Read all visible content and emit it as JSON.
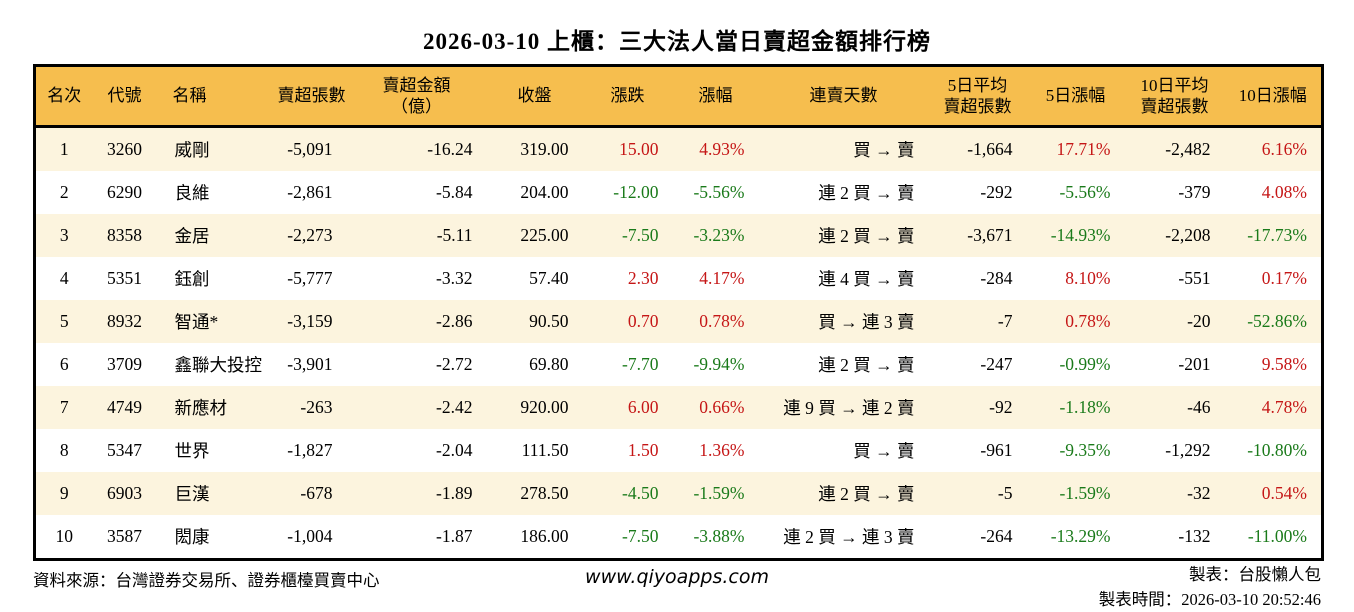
{
  "title": "2026-03-10 上櫃：三大法人當日賣超金額排行榜",
  "colors": {
    "rise": "#c51616",
    "fall": "#1a7a1a",
    "header_bg": "#f6be4e",
    "row_alt_bg": "#fcf4de",
    "border": "#000000"
  },
  "table": {
    "columns": [
      {
        "key": "rank",
        "label": "名次",
        "align_header": "center",
        "align": "center"
      },
      {
        "key": "code",
        "label": "代號",
        "align_header": "center",
        "align": "center"
      },
      {
        "key": "name",
        "label": "名稱",
        "align_header": "left",
        "align": "left"
      },
      {
        "key": "sell_shares",
        "label": "賣超張數",
        "align_header": "center",
        "align": "right"
      },
      {
        "key": "sell_amount",
        "label": "賣超金額\n（億）",
        "align_header": "center",
        "align": "right"
      },
      {
        "key": "close",
        "label": "收盤",
        "align_header": "center",
        "align": "right"
      },
      {
        "key": "change",
        "label": "漲跌",
        "align_header": "center",
        "align": "right"
      },
      {
        "key": "change_pct",
        "label": "漲幅",
        "align_header": "center",
        "align": "right"
      },
      {
        "key": "streak",
        "label": "連賣天數",
        "align_header": "center",
        "align": "right"
      },
      {
        "key": "avg5",
        "label": "5日平均\n賣超張數",
        "align_header": "center",
        "align": "right"
      },
      {
        "key": "pct5",
        "label": "5日漲幅",
        "align_header": "center",
        "align": "right"
      },
      {
        "key": "avg10",
        "label": "10日平均\n賣超張數",
        "align_header": "center",
        "align": "right"
      },
      {
        "key": "pct10",
        "label": "10日漲幅",
        "align_header": "center",
        "align": "right"
      }
    ],
    "rows": [
      {
        "rank": "1",
        "code": "3260",
        "name": "威剛",
        "sell_shares": "-5,091",
        "sell_amount": "-16.24",
        "close": "319.00",
        "change": {
          "v": "15.00",
          "dir": "up"
        },
        "change_pct": {
          "v": "4.93%",
          "dir": "up"
        },
        "streak": "買 → 賣",
        "avg5": "-1,664",
        "pct5": {
          "v": "17.71%",
          "dir": "up"
        },
        "avg10": "-2,482",
        "pct10": {
          "v": "6.16%",
          "dir": "up"
        }
      },
      {
        "rank": "2",
        "code": "6290",
        "name": "良維",
        "sell_shares": "-2,861",
        "sell_amount": "-5.84",
        "close": "204.00",
        "change": {
          "v": "-12.00",
          "dir": "down"
        },
        "change_pct": {
          "v": "-5.56%",
          "dir": "down"
        },
        "streak": "連 2 買 → 賣",
        "avg5": "-292",
        "pct5": {
          "v": "-5.56%",
          "dir": "down"
        },
        "avg10": "-379",
        "pct10": {
          "v": "4.08%",
          "dir": "up"
        }
      },
      {
        "rank": "3",
        "code": "8358",
        "name": "金居",
        "sell_shares": "-2,273",
        "sell_amount": "-5.11",
        "close": "225.00",
        "change": {
          "v": "-7.50",
          "dir": "down"
        },
        "change_pct": {
          "v": "-3.23%",
          "dir": "down"
        },
        "streak": "連 2 買 → 賣",
        "avg5": "-3,671",
        "pct5": {
          "v": "-14.93%",
          "dir": "down"
        },
        "avg10": "-2,208",
        "pct10": {
          "v": "-17.73%",
          "dir": "down"
        }
      },
      {
        "rank": "4",
        "code": "5351",
        "name": "鈺創",
        "sell_shares": "-5,777",
        "sell_amount": "-3.32",
        "close": "57.40",
        "change": {
          "v": "2.30",
          "dir": "up"
        },
        "change_pct": {
          "v": "4.17%",
          "dir": "up"
        },
        "streak": "連 4 買 → 賣",
        "avg5": "-284",
        "pct5": {
          "v": "8.10%",
          "dir": "up"
        },
        "avg10": "-551",
        "pct10": {
          "v": "0.17%",
          "dir": "up"
        }
      },
      {
        "rank": "5",
        "code": "8932",
        "name": "智通*",
        "sell_shares": "-3,159",
        "sell_amount": "-2.86",
        "close": "90.50",
        "change": {
          "v": "0.70",
          "dir": "up"
        },
        "change_pct": {
          "v": "0.78%",
          "dir": "up"
        },
        "streak": "買 → 連 3 賣",
        "avg5": "-7",
        "pct5": {
          "v": "0.78%",
          "dir": "up"
        },
        "avg10": "-20",
        "pct10": {
          "v": "-52.86%",
          "dir": "down"
        }
      },
      {
        "rank": "6",
        "code": "3709",
        "name": "鑫聯大投控",
        "sell_shares": "-3,901",
        "sell_amount": "-2.72",
        "close": "69.80",
        "change": {
          "v": "-7.70",
          "dir": "down"
        },
        "change_pct": {
          "v": "-9.94%",
          "dir": "down"
        },
        "streak": "連 2 買 → 賣",
        "avg5": "-247",
        "pct5": {
          "v": "-0.99%",
          "dir": "down"
        },
        "avg10": "-201",
        "pct10": {
          "v": "9.58%",
          "dir": "up"
        }
      },
      {
        "rank": "7",
        "code": "4749",
        "name": "新應材",
        "sell_shares": "-263",
        "sell_amount": "-2.42",
        "close": "920.00",
        "change": {
          "v": "6.00",
          "dir": "up"
        },
        "change_pct": {
          "v": "0.66%",
          "dir": "up"
        },
        "streak": "連 9 買 → 連 2 賣",
        "avg5": "-92",
        "pct5": {
          "v": "-1.18%",
          "dir": "down"
        },
        "avg10": "-46",
        "pct10": {
          "v": "4.78%",
          "dir": "up"
        }
      },
      {
        "rank": "8",
        "code": "5347",
        "name": "世界",
        "sell_shares": "-1,827",
        "sell_amount": "-2.04",
        "close": "111.50",
        "change": {
          "v": "1.50",
          "dir": "up"
        },
        "change_pct": {
          "v": "1.36%",
          "dir": "up"
        },
        "streak": "買 → 賣",
        "avg5": "-961",
        "pct5": {
          "v": "-9.35%",
          "dir": "down"
        },
        "avg10": "-1,292",
        "pct10": {
          "v": "-10.80%",
          "dir": "down"
        }
      },
      {
        "rank": "9",
        "code": "6903",
        "name": "巨漢",
        "sell_shares": "-678",
        "sell_amount": "-1.89",
        "close": "278.50",
        "change": {
          "v": "-4.50",
          "dir": "down"
        },
        "change_pct": {
          "v": "-1.59%",
          "dir": "down"
        },
        "streak": "連 2 買 → 賣",
        "avg5": "-5",
        "pct5": {
          "v": "-1.59%",
          "dir": "down"
        },
        "avg10": "-32",
        "pct10": {
          "v": "0.54%",
          "dir": "up"
        }
      },
      {
        "rank": "10",
        "code": "3587",
        "name": "閎康",
        "sell_shares": "-1,004",
        "sell_amount": "-1.87",
        "close": "186.00",
        "change": {
          "v": "-7.50",
          "dir": "down"
        },
        "change_pct": {
          "v": "-3.88%",
          "dir": "down"
        },
        "streak": "連 2 買 → 連 3 賣",
        "avg5": "-264",
        "pct5": {
          "v": "-13.29%",
          "dir": "down"
        },
        "avg10": "-132",
        "pct10": {
          "v": "-11.00%",
          "dir": "down"
        }
      }
    ]
  },
  "footer": {
    "source": "資料來源：台灣證券交易所、證券櫃檯買賣中心",
    "website": "www.qiyoapps.com",
    "author": "製表：台股懶人包",
    "timestamp": "製表時間：2026-03-10 20:52:46"
  },
  "chart_data": {
    "type": "table",
    "title": "2026-03-10 上櫃：三大法人當日賣超金額排行榜",
    "columns": [
      "名次",
      "代號",
      "名稱",
      "賣超張數",
      "賣超金額（億）",
      "收盤",
      "漲跌",
      "漲幅",
      "連賣天數",
      "5日平均賣超張數",
      "5日漲幅",
      "10日平均賣超張數",
      "10日漲幅"
    ],
    "rows": [
      [
        "1",
        "3260",
        "威剛",
        "-5,091",
        "-16.24",
        "319.00",
        "15.00",
        "4.93%",
        "買 → 賣",
        "-1,664",
        "17.71%",
        "-2,482",
        "6.16%"
      ],
      [
        "2",
        "6290",
        "良維",
        "-2,861",
        "-5.84",
        "204.00",
        "-12.00",
        "-5.56%",
        "連 2 買 → 賣",
        "-292",
        "-5.56%",
        "-379",
        "4.08%"
      ],
      [
        "3",
        "8358",
        "金居",
        "-2,273",
        "-5.11",
        "225.00",
        "-7.50",
        "-3.23%",
        "連 2 買 → 賣",
        "-3,671",
        "-14.93%",
        "-2,208",
        "-17.73%"
      ],
      [
        "4",
        "5351",
        "鈺創",
        "-5,777",
        "-3.32",
        "57.40",
        "2.30",
        "4.17%",
        "連 4 買 → 賣",
        "-284",
        "8.10%",
        "-551",
        "0.17%"
      ],
      [
        "5",
        "8932",
        "智通*",
        "-3,159",
        "-2.86",
        "90.50",
        "0.70",
        "0.78%",
        "買 → 連 3 賣",
        "-7",
        "0.78%",
        "-20",
        "-52.86%"
      ],
      [
        "6",
        "3709",
        "鑫聯大投控",
        "-3,901",
        "-2.72",
        "69.80",
        "-7.70",
        "-9.94%",
        "連 2 買 → 賣",
        "-247",
        "-0.99%",
        "-201",
        "9.58%"
      ],
      [
        "7",
        "4749",
        "新應材",
        "-263",
        "-2.42",
        "920.00",
        "6.00",
        "0.66%",
        "連 9 買 → 連 2 賣",
        "-92",
        "-1.18%",
        "-46",
        "4.78%"
      ],
      [
        "8",
        "5347",
        "世界",
        "-1,827",
        "-2.04",
        "111.50",
        "1.50",
        "1.36%",
        "買 → 賣",
        "-961",
        "-9.35%",
        "-1,292",
        "-10.80%"
      ],
      [
        "9",
        "6903",
        "巨漢",
        "-678",
        "-1.89",
        "278.50",
        "-4.50",
        "-1.59%",
        "連 2 買 → 賣",
        "-5",
        "-1.59%",
        "-32",
        "0.54%"
      ],
      [
        "10",
        "3587",
        "閎康",
        "-1,004",
        "-1.87",
        "186.00",
        "-7.50",
        "-3.88%",
        "連 2 買 → 連 3 賣",
        "-264",
        "-13.29%",
        "-132",
        "-11.00%"
      ]
    ]
  }
}
